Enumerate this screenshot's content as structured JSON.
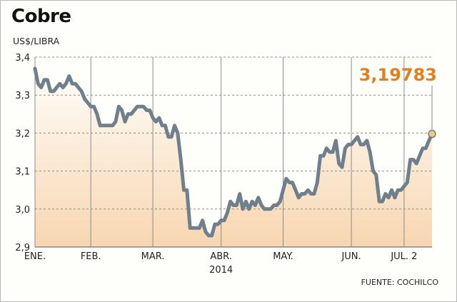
{
  "title": "Cobre",
  "unit": "US$/LIBRA",
  "source": "FUENTE: COCHILCO",
  "colors": {
    "line": "#6f7f8c",
    "area_top": "#fefefa",
    "area_bottom": "#f7d6b0",
    "callout": "#e0801f",
    "grid": "#8c8c8c"
  },
  "chart_data": {
    "type": "area",
    "title": "Cobre",
    "ylabel": "US$/LIBRA",
    "ylim": [
      2.9,
      3.4
    ],
    "yticks": [
      "3,4",
      "3,3",
      "3,2",
      "3,1",
      "3,0",
      "2,9"
    ],
    "ytick_values": [
      3.4,
      3.3,
      3.2,
      3.1,
      3.0,
      2.9
    ],
    "xticks": [
      "ENE.",
      "FEB.",
      "MAR.",
      "ABR.",
      "MAY.",
      "JUN.",
      "JUL. 2"
    ],
    "year_label": "2014",
    "last_value_label": "3,19783",
    "series": [
      {
        "values": [
          3.37,
          3.33,
          3.32,
          3.34,
          3.34,
          3.31,
          3.31,
          3.32,
          3.33,
          3.32,
          3.33,
          3.35,
          3.33,
          3.33,
          3.32,
          3.31,
          3.29,
          3.28,
          3.27,
          3.27,
          3.25,
          3.22,
          3.22,
          3.22,
          3.22,
          3.22,
          3.23,
          3.27,
          3.26,
          3.23,
          3.25,
          3.25,
          3.26,
          3.27,
          3.27,
          3.27,
          3.26,
          3.26,
          3.24,
          3.23,
          3.24,
          3.22,
          3.22,
          3.19,
          3.19,
          3.22,
          3.2,
          3.13,
          3.05,
          3.05,
          2.95,
          2.95,
          2.95,
          2.95,
          2.97,
          2.94,
          2.93,
          2.93,
          2.96,
          2.96,
          2.97,
          2.97,
          2.99,
          3.02,
          3.01,
          3.01,
          3.04,
          3.0,
          3.02,
          3.0,
          3.02,
          3.01,
          3.03,
          3.01,
          3.0,
          3.0,
          3.0,
          3.01,
          3.01,
          3.02,
          3.05,
          3.08,
          3.07,
          3.07,
          3.05,
          3.03,
          3.04,
          3.04,
          3.05,
          3.04,
          3.04,
          3.07,
          3.14,
          3.14,
          3.16,
          3.15,
          3.15,
          3.18,
          3.12,
          3.11,
          3.16,
          3.17,
          3.17,
          3.18,
          3.19,
          3.17,
          3.17,
          3.18,
          3.15,
          3.1,
          3.09,
          3.02,
          3.02,
          3.04,
          3.03,
          3.05,
          3.03,
          3.05,
          3.05,
          3.06,
          3.07,
          3.13,
          3.13,
          3.12,
          3.14,
          3.16,
          3.16,
          3.18,
          3.19783
        ]
      }
    ]
  }
}
